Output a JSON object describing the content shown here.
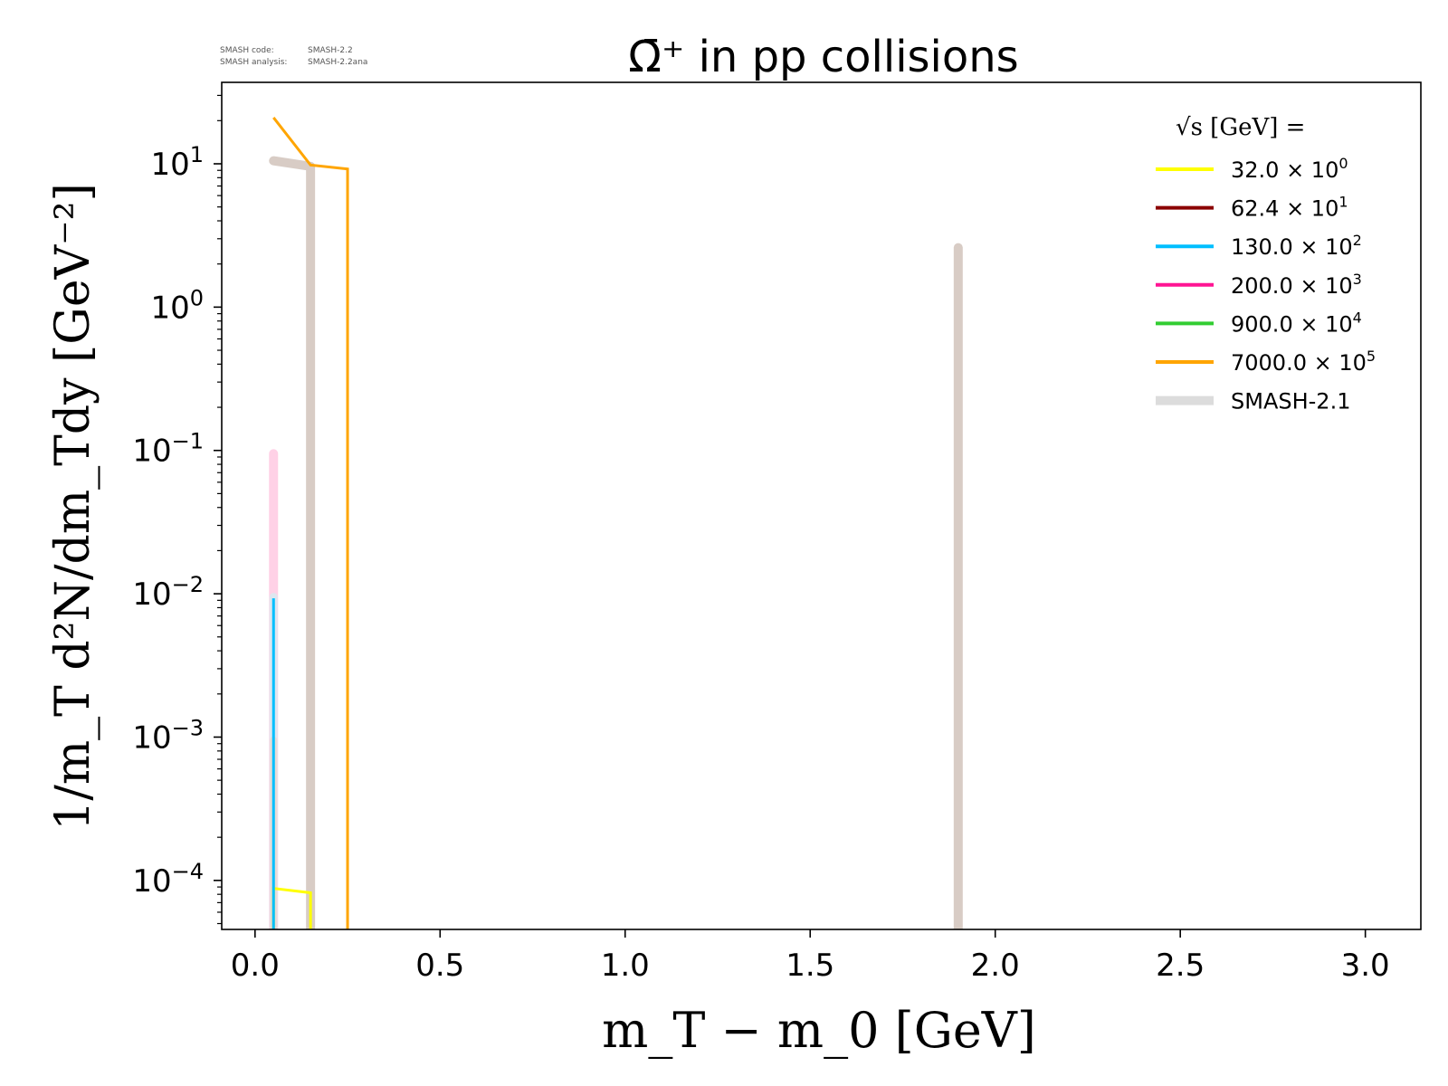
{
  "watermark": {
    "code_label": "SMASH code:",
    "code_value": "SMASH-2.2",
    "analysis_label": "SMASH analysis:",
    "analysis_value": "SMASH-2.2ana"
  },
  "chart_data": {
    "type": "line",
    "title": "Ω̄⁺ in pp collisions",
    "xlabel": "m_T − m_0 [GeV]",
    "ylabel": "1/m_T d²N/dm_Tdy [GeV⁻²]",
    "xlim": [
      -0.09,
      3.15
    ],
    "ylim": [
      4.55e-05,
      37
    ],
    "yscale": "log",
    "grid": false,
    "legend_position": "top-right",
    "legend_title": "√s [GeV] =",
    "x_ticks": [
      0.0,
      0.5,
      1.0,
      1.5,
      2.0,
      2.5,
      3.0
    ],
    "x_tick_labels": [
      "0.0",
      "0.5",
      "1.0",
      "1.5",
      "2.0",
      "2.5",
      "3.0"
    ],
    "y_ticks": [
      {
        "value": 10,
        "base": "10",
        "exp": "1"
      },
      {
        "value": 1,
        "base": "10",
        "exp": "0"
      },
      {
        "value": 0.1,
        "base": "10",
        "exp": "−1"
      },
      {
        "value": 0.01,
        "base": "10",
        "exp": "−2"
      },
      {
        "value": 0.001,
        "base": "10",
        "exp": "−3"
      },
      {
        "value": 0.0001,
        "base": "10",
        "exp": "−4"
      }
    ],
    "series": [
      {
        "name": "32.0 × 10⁰",
        "mantissa": "32.0",
        "exp": "0",
        "color": "#ffff00",
        "width": 3,
        "x": [
          0.05,
          0.05,
          0.15,
          0.15
        ],
        "y": [
          4.55e-05,
          8.8e-05,
          8.2e-05,
          4.55e-05
        ]
      },
      {
        "name": "62.4 × 10¹",
        "mantissa": "62.4",
        "exp": "1",
        "color": "#8b0000",
        "width": 3,
        "x": [],
        "y": []
      },
      {
        "name": "130.0 × 10²",
        "mantissa": "130.0",
        "exp": "2",
        "color": "#00bfff",
        "width": 3,
        "x": [
          0.05,
          0.05
        ],
        "y": [
          4.55e-05,
          0.0093
        ]
      },
      {
        "name": "200.0 × 10³",
        "mantissa": "200.0",
        "exp": "3",
        "color": "#ff1493",
        "width": 3,
        "x": [],
        "y": []
      },
      {
        "name": "900.0 × 10⁴",
        "mantissa": "900.0",
        "exp": "4",
        "color": "#32cd32",
        "width": 3,
        "x": [],
        "y": []
      },
      {
        "name": "7000.0 × 10⁵",
        "mantissa": "7000.0",
        "exp": "5",
        "color": "#ffa500",
        "width": 3,
        "x": [
          0.05,
          0.15,
          0.25,
          0.25
        ],
        "y": [
          21,
          9.8,
          9.2,
          4.55e-05
        ]
      }
    ],
    "reference": {
      "name": "SMASH-2.1",
      "color": "#d8ccc5",
      "segments": [
        {
          "x": [
            0.05,
            0.15,
            0.15
          ],
          "y": [
            10.5,
            9.6,
            4.55e-05
          ],
          "width": 10
        },
        {
          "x": [
            1.9,
            1.9
          ],
          "y": [
            2.6,
            4.55e-05
          ],
          "width": 10
        },
        {
          "x": [
            0.05,
            0.05
          ],
          "y": [
            0.095,
            4.55e-05
          ],
          "width": 10,
          "color": "#ffd1e6"
        },
        {
          "x": [
            0.05,
            0.05
          ],
          "y": [
            0.0095,
            4.55e-05
          ],
          "width": 9,
          "color": "#dfe6ef"
        },
        {
          "x": [
            0.05,
            0.05
          ],
          "y": [
            0.00095,
            4.55e-05
          ],
          "width": 8,
          "color": "#e8dcd6"
        }
      ]
    }
  }
}
